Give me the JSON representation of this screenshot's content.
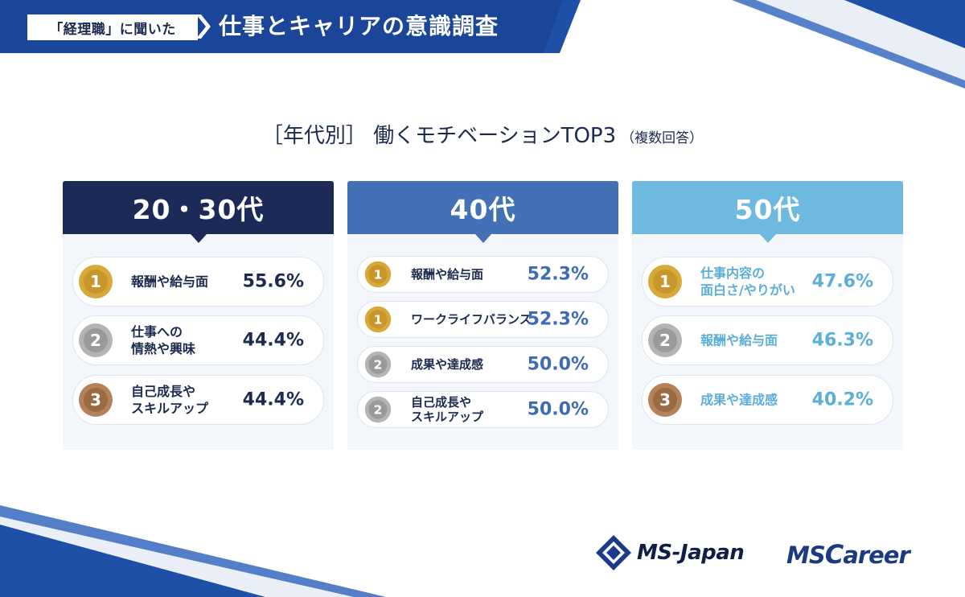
{
  "banner": {
    "tag": "「経理職」に聞いた",
    "title": "仕事とキャリアの意識調査"
  },
  "heading": {
    "title": "［年代別］ 働くモチベーションTOP3",
    "note": "（複数回答）"
  },
  "colors": {
    "navy": "#1b2a57",
    "blue": "#4470b6",
    "light_blue": "#6db9df",
    "gold": "#d8a93a",
    "silver": "#a9a9a9",
    "bronze": "#a9764c"
  },
  "columns": [
    {
      "header": "20・30代",
      "items": [
        {
          "rank": "1",
          "medal": "gold-medal-icon",
          "label": "報酬や給与面",
          "pct": "55.6%"
        },
        {
          "rank": "2",
          "medal": "silver-medal-icon",
          "label": "仕事への\n情熱や興味",
          "pct": "44.4%"
        },
        {
          "rank": "3",
          "medal": "bronze-medal-icon",
          "label": "自己成長や\nスキルアップ",
          "pct": "44.4%"
        }
      ]
    },
    {
      "header": "40代",
      "items": [
        {
          "rank": "1",
          "medal": "gold-medal-icon",
          "label": "報酬や給与面",
          "pct": "52.3%"
        },
        {
          "rank": "1",
          "medal": "gold-medal-icon",
          "label": "ワークライフバランス",
          "pct": "52.3%"
        },
        {
          "rank": "2",
          "medal": "silver-medal-icon",
          "label": "成果や達成感",
          "pct": "50.0%"
        },
        {
          "rank": "2",
          "medal": "silver-medal-icon",
          "label": "自己成長や\nスキルアップ",
          "pct": "50.0%"
        }
      ]
    },
    {
      "header": "50代",
      "items": [
        {
          "rank": "1",
          "medal": "gold-medal-icon",
          "label": "仕事内容の\n面白さ/やりがい",
          "pct": "47.6%"
        },
        {
          "rank": "2",
          "medal": "silver-medal-icon",
          "label": "報酬や給与面",
          "pct": "46.3%"
        },
        {
          "rank": "3",
          "medal": "bronze-medal-icon",
          "label": "成果や達成感",
          "pct": "40.2%"
        }
      ]
    }
  ],
  "logos": {
    "ms_japan": "MS-Japan",
    "ms_career_prefix": "MS",
    "ms_career_c": "C",
    "ms_career_rest": "areer"
  }
}
